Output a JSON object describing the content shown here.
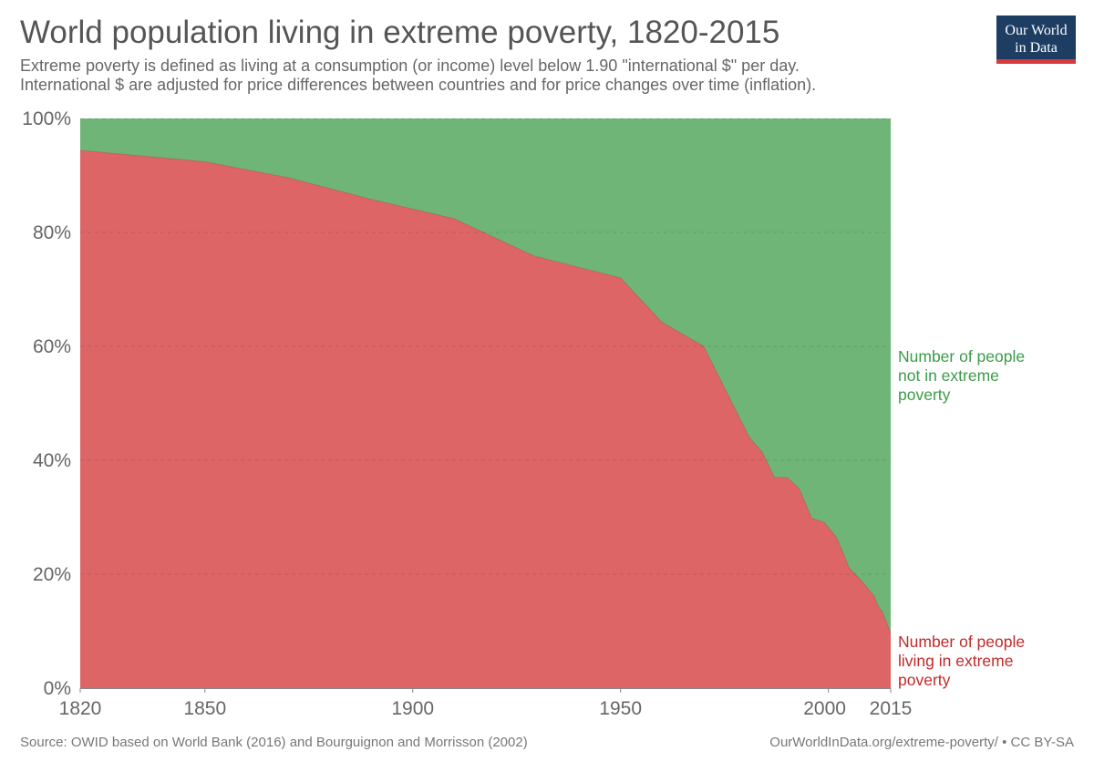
{
  "header": {
    "title": "World population living in extreme poverty, 1820-2015",
    "subtitle_line1": "Extreme poverty is defined as living at a consumption (or income) level below 1.90 \"international $\" per day.",
    "subtitle_line2": "International $ are adjusted for price differences between countries and for price changes over time (inflation).",
    "logo_line1": "Our World",
    "logo_line2": "in Data"
  },
  "footer": {
    "source": "Source: OWID based on World Bank (2016) and Bourguignon and Morrisson (2002)",
    "url": "OurWorldInData.org/extreme-poverty/ • CC BY-SA"
  },
  "colors": {
    "poverty": "#dd6565",
    "not_poverty": "#6eb577",
    "poverty_label": "#c12a2a",
    "not_poverty_label": "#3b9b48",
    "logo_bg": "#1d3d63",
    "logo_bar": "#d73b3e"
  },
  "chart_data": {
    "type": "area",
    "stacked": true,
    "normalized": true,
    "xlim": [
      1820,
      2015
    ],
    "ylim": [
      0,
      100
    ],
    "x_ticks": [
      {
        "value": 1820,
        "label": "1820"
      },
      {
        "value": 1850,
        "label": "1850"
      },
      {
        "value": 1900,
        "label": "1900"
      },
      {
        "value": 1950,
        "label": "1950"
      },
      {
        "value": 2000,
        "label": "2000"
      },
      {
        "value": 2015,
        "label": "2015"
      }
    ],
    "y_ticks": [
      {
        "value": 0,
        "label": "0%"
      },
      {
        "value": 20,
        "label": "20%"
      },
      {
        "value": 40,
        "label": "40%"
      },
      {
        "value": 60,
        "label": "60%"
      },
      {
        "value": 80,
        "label": "80%"
      },
      {
        "value": 100,
        "label": "100%"
      }
    ],
    "grid": true,
    "x": [
      1820,
      1850,
      1870,
      1890,
      1910,
      1929,
      1950,
      1960,
      1970,
      1981,
      1984,
      1987,
      1990,
      1993,
      1996,
      1999,
      2002,
      2005,
      2008,
      2011,
      2012,
      2013,
      2015
    ],
    "series": [
      {
        "name": "Number of people\nliving in extreme\npoverty",
        "label_lines": [
          "Number of people",
          "living in extreme",
          "poverty"
        ],
        "key": "poverty",
        "values": [
          94.4,
          92.4,
          89.6,
          85.8,
          82.4,
          75.9,
          72.0,
          64.2,
          60.0,
          44.0,
          41.5,
          37.0,
          37.0,
          35.0,
          29.8,
          29.1,
          26.4,
          21.1,
          18.8,
          16.2,
          14.3,
          13.4,
          9.6
        ]
      },
      {
        "name": "Number of people\nnot in extreme\npoverty",
        "label_lines": [
          "Number of people",
          "not in extreme",
          "poverty"
        ],
        "key": "not_poverty",
        "values": [
          5.6,
          7.6,
          10.4,
          14.2,
          17.6,
          24.1,
          28.0,
          35.8,
          40.0,
          56.0,
          58.5,
          63.0,
          63.0,
          65.0,
          70.2,
          70.9,
          73.6,
          78.9,
          81.2,
          83.8,
          85.7,
          86.6,
          90.4
        ]
      }
    ]
  }
}
